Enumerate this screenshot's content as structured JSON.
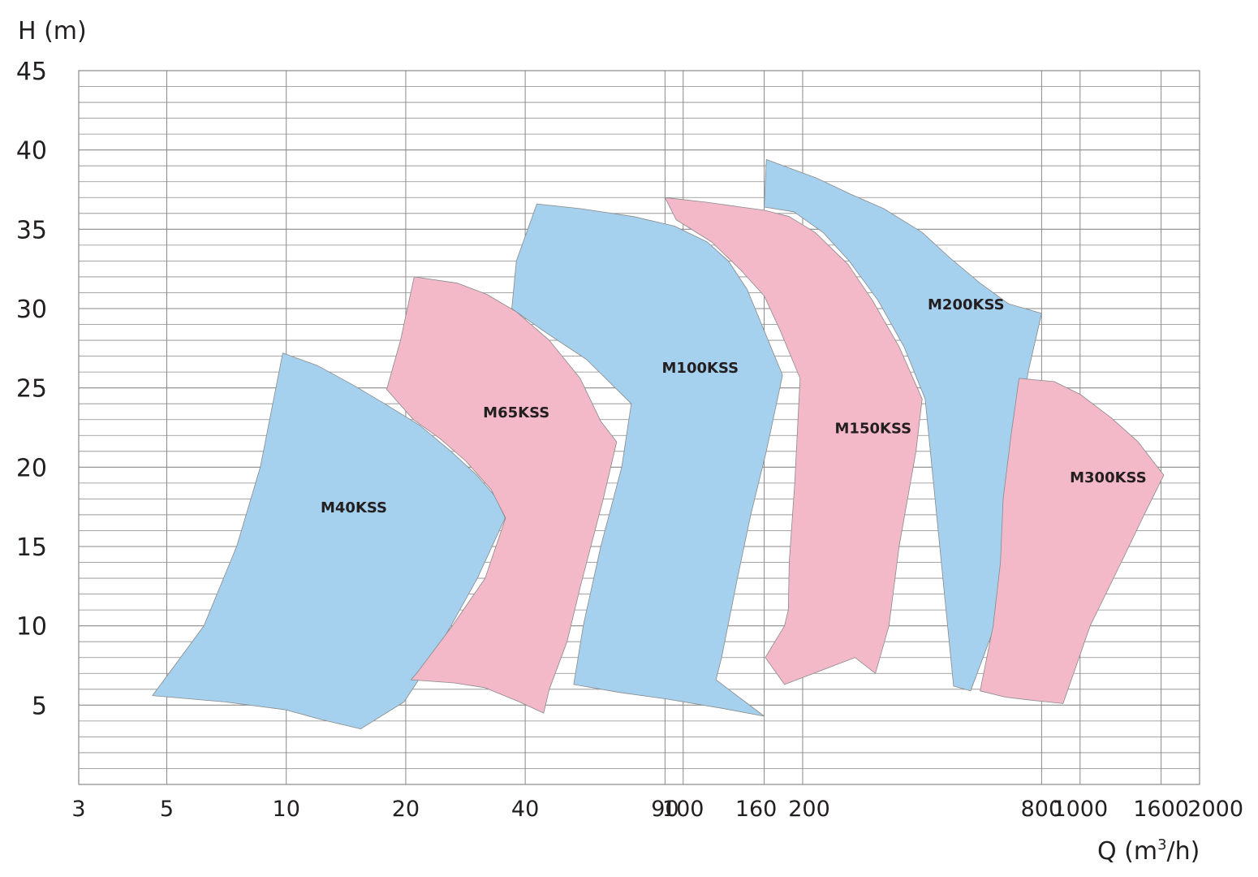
{
  "chart_data": {
    "type": "area",
    "title": "",
    "ylabel": "H (m)",
    "xlabel": "Q (m³/h)",
    "x_scale": "log",
    "xlim": [
      3,
      2000
    ],
    "ylim": [
      0,
      45
    ],
    "grid": true,
    "y_ticks": [
      "5",
      "10",
      "15",
      "20",
      "25",
      "30",
      "35",
      "40",
      "45"
    ],
    "x_ticks": [
      "3",
      "5",
      "10",
      "20",
      "40",
      "90",
      "100",
      "160",
      "200",
      "800",
      "1000",
      "1600",
      "2000"
    ],
    "colors": {
      "blue": "#a5d0ee",
      "pink": "#f3b9c9",
      "grid": "#8a8a8a",
      "outline": "#8a8a8a"
    },
    "series": [
      {
        "name": "M40KSS",
        "color": "blue",
        "label_at": [
          14.8,
          17.4
        ],
        "boundary": [
          [
            9.8,
            27.2
          ],
          [
            12,
            26.4
          ],
          [
            14.7,
            25.2
          ],
          [
            17.7,
            24.0
          ],
          [
            21.8,
            22.6
          ],
          [
            26.0,
            21.0
          ],
          [
            30.2,
            19.5
          ],
          [
            33.5,
            18.2
          ],
          [
            35.6,
            16.8
          ],
          [
            30.3,
            13.0
          ],
          [
            26.0,
            10.0
          ],
          [
            22.1,
            7.0
          ],
          [
            19.8,
            5.2
          ],
          [
            15.4,
            3.5
          ],
          [
            12.2,
            4.1
          ],
          [
            10.0,
            4.7
          ],
          [
            7.0,
            5.2
          ],
          [
            4.6,
            5.6
          ],
          [
            6.2,
            10.0
          ],
          [
            7.5,
            15.0
          ],
          [
            8.6,
            20.0
          ],
          [
            9.8,
            27.2
          ]
        ]
      },
      {
        "name": "M65KSS",
        "color": "pink",
        "label_at": [
          38.0,
          23.4
        ],
        "boundary": [
          [
            21.0,
            32.0
          ],
          [
            27,
            31.6
          ],
          [
            32,
            30.9
          ],
          [
            38,
            29.8
          ],
          [
            46,
            28.0
          ],
          [
            55,
            25.6
          ],
          [
            62,
            22.9
          ],
          [
            68,
            21.6
          ],
          [
            62.9,
            18.0
          ],
          [
            55.1,
            12.5
          ],
          [
            51,
            9.0
          ],
          [
            46,
            6.0
          ],
          [
            44.5,
            4.5
          ],
          [
            38.7,
            5.2
          ],
          [
            31.6,
            6.1
          ],
          [
            26.5,
            6.4
          ],
          [
            20.6,
            6.6
          ],
          [
            21.3,
            7.0
          ],
          [
            26.2,
            10.0
          ],
          [
            31.7,
            13.0
          ],
          [
            35.7,
            16.8
          ],
          [
            32.8,
            18.6
          ],
          [
            28.3,
            20.4
          ],
          [
            24.4,
            21.8
          ],
          [
            20.9,
            23.0
          ],
          [
            17.9,
            24.9
          ],
          [
            19.4,
            28.0
          ],
          [
            21.0,
            32.0
          ]
        ]
      },
      {
        "name": "M100KSS",
        "color": "blue",
        "label_at": [
          110.4,
          26.2
        ],
        "boundary": [
          [
            42.8,
            36.6
          ],
          [
            55,
            36.3
          ],
          [
            75,
            35.8
          ],
          [
            95,
            35.2
          ],
          [
            115,
            34.2
          ],
          [
            130,
            33.0
          ],
          [
            145,
            31.2
          ],
          [
            160,
            28.6
          ],
          [
            178,
            25.8
          ],
          [
            162,
            21.0
          ],
          [
            148,
            17.0
          ],
          [
            137,
            13.0
          ],
          [
            125,
            8.0
          ],
          [
            121,
            6.6
          ],
          [
            160,
            4.3
          ],
          [
            125,
            4.8
          ],
          [
            90,
            5.4
          ],
          [
            69,
            5.8
          ],
          [
            53,
            6.3
          ],
          [
            56,
            10.0
          ],
          [
            62,
            15.0
          ],
          [
            70,
            20.0
          ],
          [
            74,
            24.0
          ],
          [
            57,
            26.8
          ],
          [
            45,
            28.5
          ],
          [
            37,
            30.0
          ],
          [
            38,
            33.0
          ],
          [
            42.8,
            36.6
          ]
        ]
      },
      {
        "name": "M150KSS",
        "color": "pink",
        "label_at": [
          301,
          22.4
        ],
        "boundary": [
          [
            90,
            37.0
          ],
          [
            115,
            36.7
          ],
          [
            140,
            36.4
          ],
          [
            160,
            36.2
          ],
          [
            185,
            35.8
          ],
          [
            215,
            34.8
          ],
          [
            260,
            32.8
          ],
          [
            300,
            30.5
          ],
          [
            350,
            27.6
          ],
          [
            400,
            24.3
          ],
          [
            386,
            21.0
          ],
          [
            350,
            15.0
          ],
          [
            330,
            10.0
          ],
          [
            305,
            7.0
          ],
          [
            271,
            8.0
          ],
          [
            180,
            6.3
          ],
          [
            161,
            8.0
          ],
          [
            180,
            10.0
          ],
          [
            184,
            11.0
          ],
          [
            185,
            14.0
          ],
          [
            191,
            19.0
          ],
          [
            197,
            25.6
          ],
          [
            175,
            28.7
          ],
          [
            160,
            30.8
          ],
          [
            140,
            32.4
          ],
          [
            118,
            34.2
          ],
          [
            96,
            35.6
          ],
          [
            90,
            37.0
          ]
        ]
      },
      {
        "name": "M200KSS",
        "color": "blue",
        "label_at": [
          516,
          30.2
        ],
        "boundary": [
          [
            162,
            39.4
          ],
          [
            218,
            38.2
          ],
          [
            265,
            37.2
          ],
          [
            320,
            36.3
          ],
          [
            400,
            34.8
          ],
          [
            470,
            33.2
          ],
          [
            560,
            31.6
          ],
          [
            660,
            30.3
          ],
          [
            800,
            29.7
          ],
          [
            740,
            26.0
          ],
          [
            700,
            22.0
          ],
          [
            645,
            16.0
          ],
          [
            610,
            10.0
          ],
          [
            530,
            5.9
          ],
          [
            480,
            6.2
          ],
          [
            407,
            24.3
          ],
          [
            360,
            27.6
          ],
          [
            310,
            30.5
          ],
          [
            262,
            33.0
          ],
          [
            225,
            34.8
          ],
          [
            190,
            36.1
          ],
          [
            160,
            36.4
          ],
          [
            162,
            39.4
          ]
        ]
      },
      {
        "name": "M300KSS",
        "color": "pink",
        "label_at": [
          1177,
          19.3
        ],
        "boundary": [
          [
            702,
            25.6
          ],
          [
            860,
            25.4
          ],
          [
            1000,
            24.6
          ],
          [
            1200,
            23.1
          ],
          [
            1400,
            21.6
          ],
          [
            1625,
            19.5
          ],
          [
            1450,
            17.0
          ],
          [
            1270,
            14.0
          ],
          [
            1060,
            10.0
          ],
          [
            906,
            5.1
          ],
          [
            760,
            5.3
          ],
          [
            650,
            5.5
          ],
          [
            560,
            5.9
          ],
          [
            604,
            10.0
          ],
          [
            630,
            14.0
          ],
          [
            640,
            18.0
          ],
          [
            670,
            22.0
          ],
          [
            702,
            25.6
          ]
        ]
      }
    ]
  }
}
